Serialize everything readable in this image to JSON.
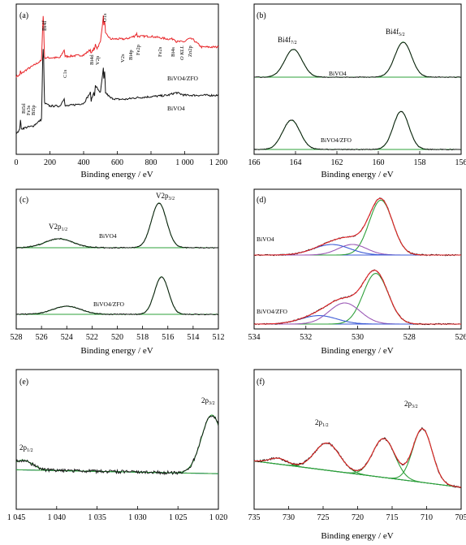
{
  "chart_data": [
    {
      "panel": "(a)",
      "type": "line",
      "xlabel": "Binding energy / eV",
      "xlim": [
        0,
        1200
      ],
      "xticks": [
        0,
        200,
        400,
        600,
        800,
        1000,
        1200
      ],
      "xtick_labels": [
        "0",
        "200",
        "400",
        "600",
        "800",
        "1 000",
        "1 200"
      ],
      "ylabel": "",
      "series": [
        {
          "name": "BiVO4/ZFO",
          "color": "#e8262a",
          "x": [
            0,
            20,
            25,
            30,
            40,
            60,
            100,
            150,
            157,
            160,
            163,
            168,
            200,
            260,
            285,
            290,
            300,
            400,
            440,
            445,
            460,
            465,
            470,
            480,
            500,
            517,
            520,
            525,
            530,
            560,
            600,
            650,
            700,
            715,
            720,
            800,
            900,
            940,
            950,
            1000,
            1020,
            1045,
            1100,
            1200
          ],
          "y": [
            0.52,
            0.53,
            0.56,
            0.54,
            0.55,
            0.57,
            0.6,
            0.64,
            0.9,
            0.97,
            0.9,
            0.66,
            0.66,
            0.66,
            0.72,
            0.67,
            0.67,
            0.68,
            0.72,
            0.69,
            0.73,
            0.72,
            0.76,
            0.73,
            0.78,
            0.97,
            0.9,
            0.94,
            0.84,
            0.8,
            0.8,
            0.8,
            0.82,
            0.84,
            0.82,
            0.82,
            0.8,
            0.8,
            0.78,
            0.78,
            0.8,
            0.8,
            0.74,
            0.74
          ]
        },
        {
          "name": "BiVO4",
          "color": "#111111",
          "x": [
            0,
            20,
            25,
            30,
            60,
            100,
            150,
            157,
            160,
            163,
            168,
            200,
            260,
            285,
            290,
            300,
            400,
            440,
            445,
            460,
            465,
            470,
            500,
            517,
            520,
            525,
            530,
            560,
            600,
            650,
            700,
            800,
            900,
            950,
            1000,
            1200
          ],
          "y": [
            0.1,
            0.12,
            0.2,
            0.13,
            0.14,
            0.15,
            0.2,
            0.65,
            0.72,
            0.65,
            0.32,
            0.3,
            0.3,
            0.36,
            0.3,
            0.3,
            0.32,
            0.4,
            0.34,
            0.4,
            0.38,
            0.45,
            0.4,
            0.58,
            0.5,
            0.55,
            0.4,
            0.36,
            0.35,
            0.35,
            0.36,
            0.37,
            0.38,
            0.4,
            0.38,
            0.38
          ]
        }
      ],
      "labels": {
        "bi5d": "Bi5d",
        "fe3s": "Fe3s",
        "bi5p": "Bi5p",
        "bi4f": "Bi4f",
        "c1s": "C1s",
        "bi4d": "Bi4d",
        "v2p": "V2p",
        "o1s": "O1s",
        "v2s": "V2s",
        "bi4p": "Bi4p",
        "fe2p": "Fe2p",
        "fe2s": "Fe2s",
        "bi4s": "Bi4s",
        "okll": "O KLL",
        "zn2p": "Zn2p",
        "bivo4zfo": "BiVO4/ZFO",
        "bivo4": "BiVO4"
      }
    },
    {
      "panel": "(b)",
      "type": "line",
      "xlabel": "Binding energy / eV",
      "xlim": [
        166,
        156
      ],
      "xticks": [
        166,
        164,
        162,
        160,
        158,
        156
      ],
      "peaks": {
        "upper": [
          {
            "center": 164.1,
            "height": 0.38,
            "sigma": 0.42
          },
          {
            "center": 158.8,
            "height": 0.48,
            "sigma": 0.4
          }
        ],
        "lower": [
          {
            "center": 164.2,
            "height": 0.4,
            "sigma": 0.42
          },
          {
            "center": 158.9,
            "height": 0.52,
            "sigma": 0.38
          }
        ]
      },
      "labels": {
        "bi4f72": "Bi4f",
        "bi4f72_sub": "7/2",
        "bi4f52": "Bi4f",
        "bi4f52_sub": "5/2",
        "upper": "BiVO4",
        "lower": "BiVO4/ZFO"
      }
    },
    {
      "panel": "(c)",
      "type": "line",
      "xlabel": "Binding energy / eV",
      "xlim": [
        528,
        512
      ],
      "xticks": [
        528,
        526,
        524,
        522,
        520,
        518,
        516,
        514,
        512
      ],
      "peaks": {
        "upper": [
          {
            "center": 524.6,
            "height": 0.1,
            "sigma": 1.1
          },
          {
            "center": 516.7,
            "height": 0.5,
            "sigma": 0.6
          }
        ],
        "lower": [
          {
            "center": 524.0,
            "height": 0.09,
            "sigma": 1.1
          },
          {
            "center": 516.5,
            "height": 0.42,
            "sigma": 0.55
          }
        ]
      },
      "labels": {
        "v2p12": "V2p",
        "v2p12_sub": "1/2",
        "v2p32": "V2p",
        "v2p32_sub": "3/2",
        "upper": "BiVO4",
        "lower": "BiVO4/ZFO"
      }
    },
    {
      "panel": "(d)",
      "type": "line",
      "xlabel": "Binding energy / eV",
      "xlim": [
        534,
        526
      ],
      "xticks": [
        534,
        532,
        530,
        528,
        526
      ],
      "peaks": {
        "upper": [
          {
            "center": 529.1,
            "height": 0.52,
            "sigma": 0.45,
            "color": "#2ea03a"
          },
          {
            "center": 530.2,
            "height": 0.1,
            "sigma": 0.55,
            "color": "#9b59b6"
          },
          {
            "center": 531.0,
            "height": 0.1,
            "sigma": 0.7,
            "color": "#3d5bd6"
          }
        ],
        "lower": [
          {
            "center": 529.3,
            "height": 0.48,
            "sigma": 0.48,
            "color": "#2ea03a"
          },
          {
            "center": 530.5,
            "height": 0.2,
            "sigma": 0.6,
            "color": "#9b59b6"
          },
          {
            "center": 531.5,
            "height": 0.08,
            "sigma": 0.7,
            "color": "#3d5bd6"
          }
        ]
      },
      "labels": {
        "upper": "BiVO4",
        "lower": "BiVO4/ZFO"
      }
    },
    {
      "panel": "(e)",
      "type": "line",
      "xlabel": "",
      "xlim": [
        1045,
        1020
      ],
      "xticks": [
        1045,
        1040,
        1035,
        1030,
        1025,
        1020
      ],
      "xtick_labels": [
        "1 045",
        "1 040",
        "1 035",
        "1 030",
        "1 025",
        "1 020"
      ],
      "peaks": [
        {
          "center": 1044.2,
          "height": 0.1,
          "sigma": 1.2
        },
        {
          "center": 1020.8,
          "height": 0.6,
          "sigma": 1.3
        }
      ],
      "labels": {
        "p12": "2p",
        "p12_sub": "1/2",
        "p32": "2p",
        "p32_sub": "3/2"
      }
    },
    {
      "panel": "(f)",
      "type": "line",
      "xlabel": "Binding energy / eV",
      "xlim": [
        735,
        705
      ],
      "xticks": [
        735,
        730,
        725,
        720,
        715,
        710,
        705
      ],
      "peaks": [
        {
          "center": 710.6,
          "height": 0.55,
          "sigma": 1.4
        },
        {
          "center": 716.2,
          "height": 0.4,
          "sigma": 1.6
        },
        {
          "center": 724.4,
          "height": 0.28,
          "sigma": 1.8
        },
        {
          "center": 731.5,
          "height": 0.06,
          "sigma": 1.3
        }
      ],
      "labels": {
        "p12": "2p",
        "p12_sub": "1/2",
        "p32": "2p",
        "p32_sub": "3/2"
      }
    }
  ],
  "colors": {
    "raw": "#111111",
    "fit": "#2ea03a",
    "background": "#3d5bd6",
    "envelope": "#e8262a",
    "survey_red": "#e8262a"
  }
}
